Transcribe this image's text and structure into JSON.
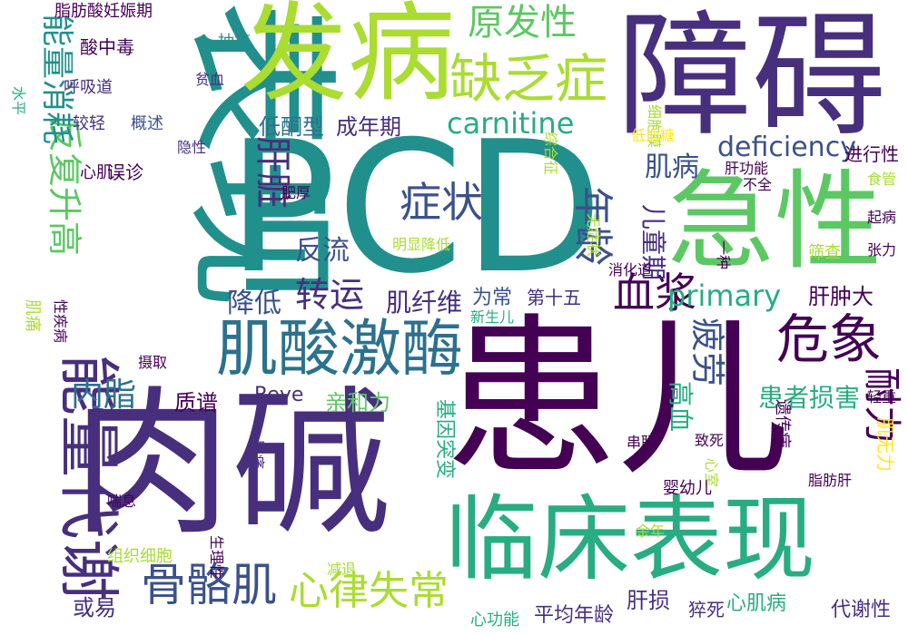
{
  "palette": {
    "dark_purple": "#440154",
    "indigo": "#472f7d",
    "slate_blue": "#3b518b",
    "steel_blue": "#2c718e",
    "teal": "#21908d",
    "sea_green": "#27ad81",
    "green": "#5cc863",
    "lime": "#aadc32",
    "yellow": "#fde725"
  },
  "words": [
    {
      "id": "PCD",
      "text": "PCD"
    },
    {
      "id": "biaoxian",
      "text": "表现"
    },
    {
      "id": "rouji",
      "text": "肉碱"
    },
    {
      "id": "huaner",
      "text": "患儿"
    },
    {
      "id": "zhangai",
      "text": "障碍"
    },
    {
      "id": "fabing",
      "text": "发病"
    },
    {
      "id": "jixing",
      "text": "急性"
    },
    {
      "id": "linchuang",
      "text": "临床表现"
    },
    {
      "id": "nengliangdaixie",
      "text": "能量代谢"
    },
    {
      "id": "jisuanjimei",
      "text": "肌酸激酶"
    },
    {
      "id": "queFazheng",
      "text": "缺乏症"
    },
    {
      "id": "weixiang",
      "text": "危象"
    },
    {
      "id": "guge",
      "text": "骨骼肌"
    },
    {
      "id": "xinlv",
      "text": "心律失常"
    },
    {
      "id": "fanfushenggao",
      "text": "反复升高"
    },
    {
      "id": "zhengzhuang",
      "text": "症状"
    },
    {
      "id": "nianling",
      "text": "年龄"
    },
    {
      "id": "xuejiang",
      "text": "血浆"
    },
    {
      "id": "naili",
      "text": "耐力"
    },
    {
      "id": "pilao",
      "text": "疲劳"
    },
    {
      "id": "yuanfaxing",
      "text": "原发性"
    },
    {
      "id": "carnitine",
      "text": "carnitine"
    },
    {
      "id": "deficiency",
      "text": "deficiency"
    },
    {
      "id": "primary",
      "text": "primary"
    },
    {
      "id": "huanzhesunhai",
      "text": "患者损害"
    },
    {
      "id": "ganzang",
      "text": "肝脏"
    },
    {
      "id": "zhuanyun",
      "text": "转运"
    },
    {
      "id": "neizhi",
      "text": "内脂"
    },
    {
      "id": "nengliangxiaohao",
      "text": "能量消耗"
    },
    {
      "id": "gaoxue",
      "text": "高血"
    },
    {
      "id": "jibing",
      "text": "肌病"
    },
    {
      "id": "ertongqi",
      "text": "儿童期"
    },
    {
      "id": "fanliu",
      "text": "反流"
    },
    {
      "id": "jiangdi",
      "text": "降低"
    },
    {
      "id": "jixianwei",
      "text": "肌纤维"
    },
    {
      "id": "ditongxing",
      "text": "低酮型"
    },
    {
      "id": "chengnianqi",
      "text": "成年期"
    },
    {
      "id": "zhipu",
      "text": "质谱"
    },
    {
      "id": "qinheli",
      "text": "亲和力"
    },
    {
      "id": "Reye",
      "text": "Reye"
    },
    {
      "id": "ganzhongda",
      "text": "肝肿大"
    },
    {
      "id": "weichang",
      "text": "为常"
    },
    {
      "id": "dishiwu",
      "text": "第十五"
    },
    {
      "id": "jiwuli",
      "text": "肌无力"
    },
    {
      "id": "huoyi",
      "text": "或易"
    },
    {
      "id": "gansun",
      "text": "肝损"
    },
    {
      "id": "xinjibing",
      "text": "心肌病"
    },
    {
      "id": "pingjunnianling",
      "text": "平均年龄"
    },
    {
      "id": "xingongneng",
      "text": "心功能"
    },
    {
      "id": "daixiexing",
      "text": "代谢性"
    },
    {
      "id": "cusi",
      "text": "猝死"
    },
    {
      "id": "jiyintubian",
      "text": "基因突变"
    },
    {
      "id": "suanzhongdu",
      "text": "酸中毒"
    },
    {
      "id": "zhifangsuan",
      "text": "脂肪酸妊娠期"
    },
    {
      "id": "chouchu",
      "text": "抽搐"
    },
    {
      "id": "pinxue",
      "text": "贫血"
    },
    {
      "id": "huxidao",
      "text": "呼吸道"
    },
    {
      "id": "shuiping",
      "text": "水平"
    },
    {
      "id": "jiaoqing",
      "text": "较轻"
    },
    {
      "id": "gaishu",
      "text": "概述"
    },
    {
      "id": "xinji",
      "text": "心肌"
    },
    {
      "id": "wuzhen",
      "text": "误诊"
    },
    {
      "id": "yinxing",
      "text": "隐性"
    },
    {
      "id": "feihou",
      "text": "肥厚"
    },
    {
      "id": "xibaomo",
      "text": "细胞膜"
    },
    {
      "id": "zonghezheng",
      "text": "综合征"
    },
    {
      "id": "ditangxue",
      "text": "低血糖"
    },
    {
      "id": "jinxingxing",
      "text": "进行性"
    },
    {
      "id": "gangongneng",
      "text": "肝功能"
    },
    {
      "id": "buquan",
      "text": "不全"
    },
    {
      "id": "shiguan",
      "text": "食管"
    },
    {
      "id": "wuzhengzhuang",
      "text": "无症状"
    },
    {
      "id": "mingxian",
      "text": "明显降低"
    },
    {
      "id": "yizhong",
      "text": "一种"
    },
    {
      "id": "qibing",
      "text": "起病"
    },
    {
      "id": "shaicha",
      "text": "筛查"
    },
    {
      "id": "zhangli",
      "text": "张力"
    },
    {
      "id": "xiaohuadao",
      "text": "消化道"
    },
    {
      "id": "jitong",
      "text": "肌痛"
    },
    {
      "id": "xingjibing",
      "text": "性疾病"
    },
    {
      "id": "xinshenger",
      "text": "新生儿"
    },
    {
      "id": "sheqv",
      "text": "摄取"
    },
    {
      "id": "chuanlian",
      "text": "串联"
    },
    {
      "id": "zhisi",
      "text": "致死"
    },
    {
      "id": "yichuanbing",
      "text": "遗传病"
    },
    {
      "id": "qingzhong",
      "text": "轻重"
    },
    {
      "id": "futong",
      "text": "腹痛"
    },
    {
      "id": "xinshi",
      "text": "心室"
    },
    {
      "id": "zhifanggan",
      "text": "脂肪肝"
    },
    {
      "id": "yingyouer",
      "text": "婴幼儿"
    },
    {
      "id": "chuanxi",
      "text": "喘息"
    },
    {
      "id": "yunian",
      "text": "余年"
    },
    {
      "id": "shenglixing",
      "text": "生理性"
    },
    {
      "id": "zuzhi",
      "text": "组织细胞"
    },
    {
      "id": "jiantui",
      "text": "减退"
    }
  ]
}
